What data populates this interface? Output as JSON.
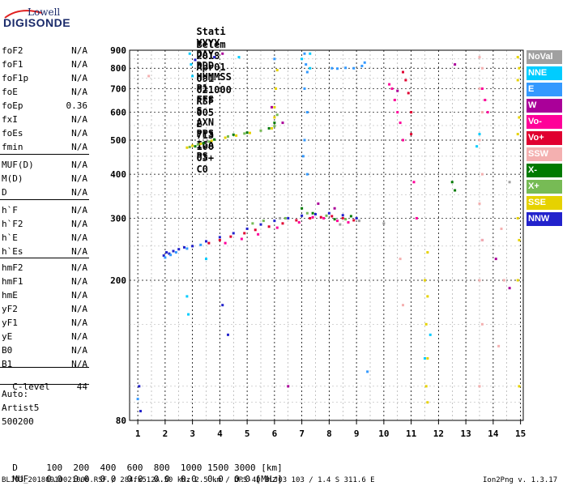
{
  "logo": {
    "line1": "Lowell",
    "line2": "DIGISONDE"
  },
  "header": {
    "row1": [
      "Stati",
      "YYYY",
      "DAY",
      "DDD",
      "HHMMSS",
      "P1",
      "FFS",
      "S",
      "AXN",
      "PPS",
      "IGA",
      "PS"
    ],
    "row2": [
      "Belem",
      "2018",
      "Apr01",
      "091",
      "021000",
      "RSF",
      "005",
      "2",
      "713",
      "100",
      "03+",
      "C0"
    ]
  },
  "params": [
    {
      "name": "foF2",
      "value": "N/A"
    },
    {
      "name": "foF1",
      "value": "N/A"
    },
    {
      "name": "foF1p",
      "value": "N/A"
    },
    {
      "name": "foE",
      "value": "N/A"
    },
    {
      "name": "foEp",
      "value": "0.36"
    },
    {
      "name": "fxI",
      "value": "N/A"
    },
    {
      "name": "foEs",
      "value": "N/A"
    },
    {
      "name": "fmin",
      "value": "N/A"
    },
    {
      "name": "MUF(D)",
      "value": "N/A"
    },
    {
      "name": "M(D)",
      "value": "N/A"
    },
    {
      "name": "D",
      "value": "N/A"
    },
    {
      "name": "h`F",
      "value": "N/A"
    },
    {
      "name": "h`F2",
      "value": "N/A"
    },
    {
      "name": "h`E",
      "value": "N/A"
    },
    {
      "name": "h`Es",
      "value": "N/A"
    },
    {
      "name": "hmF2",
      "value": "N/A"
    },
    {
      "name": "hmF1",
      "value": "N/A"
    },
    {
      "name": "hmE",
      "value": "N/A"
    },
    {
      "name": "yF2",
      "value": "N/A"
    },
    {
      "name": "yF1",
      "value": "N/A"
    },
    {
      "name": "yE",
      "value": "N/A"
    },
    {
      "name": "B0",
      "value": "N/A"
    },
    {
      "name": "B1",
      "value": "N/A"
    }
  ],
  "clevel": {
    "name": "C-level",
    "value": "44"
  },
  "auto": {
    "label": "Auto:",
    "artist": "Artist5",
    "version": "500200"
  },
  "legend": [
    {
      "label": "NoVal",
      "color": "#a0a0a0"
    },
    {
      "label": "NNE",
      "color": "#00ccff"
    },
    {
      "label": "E",
      "color": "#3399ff"
    },
    {
      "label": "W",
      "color": "#aa0099"
    },
    {
      "label": "Vo-",
      "color": "#ff0099"
    },
    {
      "label": "Vo+",
      "color": "#e00030"
    },
    {
      "label": "SSW",
      "color": "#f4b0b0"
    },
    {
      "label": "X-",
      "color": "#007a00"
    },
    {
      "label": "X+",
      "color": "#77bb55"
    },
    {
      "label": "SSE",
      "color": "#e6d200"
    },
    {
      "label": "NNW",
      "color": "#2222cc"
    }
  ],
  "footer": {
    "d_label": "D",
    "d_values": [
      "100",
      "200",
      "400",
      "600",
      "800",
      "1000",
      "1500",
      "3000",
      "[km]"
    ],
    "muf_label": "MUF",
    "muf_values": [
      "0.0",
      "0.0",
      "0.0",
      "0.0",
      "0.0",
      "0.0",
      "0.0",
      "0.0",
      "[MHz]"
    ],
    "file_info": "BLJ03_20180910021000.RSF / 284fx512A 50 kHz 2.5 km / DPS-4D BLJ03 103 / 1.4 S 311.6 E",
    "version": "Ion2Png v. 1.3.17"
  },
  "chart_data": {
    "type": "scatter",
    "title": "",
    "xlabel": "",
    "ylabel": "",
    "xlim": [
      0.7,
      15.1
    ],
    "ylim": [
      80,
      900
    ],
    "y_scale": "log",
    "x_ticks": [
      1,
      2,
      3,
      4,
      5,
      6,
      7,
      8,
      9,
      10,
      11,
      12,
      13,
      14,
      15
    ],
    "y_ticks": [
      80,
      200,
      300,
      400,
      500,
      600,
      700,
      800,
      900
    ],
    "grid": true,
    "legend_placement": "right",
    "series": [
      {
        "color": "#2222cc",
        "points": [
          [
            1.95,
            235
          ],
          [
            2.05,
            240
          ],
          [
            2.15,
            238
          ],
          [
            2.3,
            242
          ],
          [
            2.5,
            245
          ],
          [
            2.7,
            248
          ],
          [
            3.0,
            250
          ],
          [
            3.5,
            258
          ],
          [
            4.0,
            265
          ],
          [
            4.5,
            272
          ],
          [
            5.0,
            280
          ],
          [
            5.5,
            288
          ],
          [
            6.0,
            295
          ],
          [
            6.5,
            300
          ],
          [
            7.0,
            305
          ],
          [
            7.5,
            308
          ],
          [
            8.0,
            310
          ],
          [
            8.5,
            306
          ],
          [
            9.0,
            300
          ],
          [
            3.1,
            845
          ],
          [
            3.8,
            860
          ],
          [
            4.1,
            170
          ],
          [
            4.3,
            140
          ],
          [
            1.05,
            100
          ],
          [
            1.1,
            85
          ]
        ]
      },
      {
        "color": "#3399ff",
        "points": [
          [
            2.0,
            232
          ],
          [
            2.2,
            236
          ],
          [
            2.4,
            240
          ],
          [
            2.8,
            246
          ],
          [
            3.3,
            252
          ],
          [
            7.1,
            880
          ],
          [
            7.15,
            820
          ],
          [
            7.2,
            780
          ],
          [
            7.1,
            700
          ],
          [
            7.2,
            600
          ],
          [
            7.1,
            500
          ],
          [
            7.05,
            450
          ],
          [
            7.2,
            400
          ],
          [
            8.1,
            800
          ],
          [
            8.3,
            798
          ],
          [
            8.6,
            802
          ],
          [
            8.9,
            800
          ],
          [
            9.2,
            812
          ],
          [
            9.3,
            830
          ],
          [
            6.0,
            850
          ],
          [
            1.0,
            92
          ],
          [
            9.4,
            110
          ]
        ]
      },
      {
        "color": "#00ccff",
        "points": [
          [
            2.9,
            880
          ],
          [
            2.95,
            820
          ],
          [
            3.0,
            760
          ],
          [
            2.8,
            180
          ],
          [
            2.85,
            160
          ],
          [
            3.5,
            230
          ],
          [
            4.7,
            860
          ],
          [
            7.0,
            850
          ],
          [
            7.3,
            880
          ],
          [
            7.3,
            800
          ],
          [
            11.7,
            140
          ],
          [
            11.5,
            120
          ],
          [
            13.5,
            520
          ],
          [
            13.4,
            480
          ]
        ]
      },
      {
        "color": "#aa0099",
        "points": [
          [
            4.1,
            880
          ],
          [
            5.9,
            620
          ],
          [
            6.3,
            560
          ],
          [
            6.5,
            100
          ],
          [
            10.5,
            690
          ],
          [
            12.6,
            820
          ],
          [
            13.6,
            260
          ],
          [
            14.1,
            230
          ],
          [
            14.6,
            190
          ],
          [
            7.6,
            330
          ],
          [
            8.2,
            320
          ]
        ]
      },
      {
        "color": "#ff0099",
        "points": [
          [
            4.2,
            255
          ],
          [
            4.8,
            262
          ],
          [
            5.4,
            270
          ],
          [
            6.1,
            282
          ],
          [
            6.9,
            292
          ],
          [
            7.4,
            302
          ],
          [
            7.8,
            300
          ],
          [
            8.3,
            295
          ],
          [
            8.7,
            292
          ],
          [
            10.2,
            720
          ],
          [
            10.3,
            700
          ],
          [
            10.4,
            650
          ],
          [
            10.5,
            600
          ],
          [
            10.6,
            560
          ],
          [
            10.7,
            500
          ],
          [
            11.1,
            380
          ],
          [
            11.2,
            300
          ],
          [
            13.6,
            700
          ],
          [
            13.7,
            650
          ],
          [
            13.8,
            600
          ]
        ]
      },
      {
        "color": "#e00030",
        "points": [
          [
            3.6,
            255
          ],
          [
            4.0,
            260
          ],
          [
            4.4,
            266
          ],
          [
            4.9,
            272
          ],
          [
            5.3,
            278
          ],
          [
            5.8,
            284
          ],
          [
            6.3,
            290
          ],
          [
            6.8,
            296
          ],
          [
            7.3,
            300
          ],
          [
            7.7,
            302
          ],
          [
            8.1,
            304
          ],
          [
            8.5,
            300
          ],
          [
            8.9,
            296
          ],
          [
            10.7,
            780
          ],
          [
            10.8,
            740
          ],
          [
            10.9,
            680
          ],
          [
            11.0,
            600
          ],
          [
            11.0,
            520
          ]
        ]
      },
      {
        "color": "#f4b0b0",
        "points": [
          [
            1.4,
            760
          ],
          [
            13.5,
            860
          ],
          [
            13.6,
            800
          ],
          [
            13.5,
            700
          ],
          [
            13.6,
            600
          ],
          [
            13.5,
            500
          ],
          [
            13.6,
            400
          ],
          [
            13.5,
            330
          ],
          [
            13.6,
            260
          ],
          [
            13.5,
            200
          ],
          [
            13.6,
            150
          ],
          [
            13.5,
            100
          ],
          [
            14.3,
            280
          ],
          [
            14.4,
            200
          ],
          [
            14.2,
            130
          ],
          [
            10.6,
            230
          ],
          [
            10.7,
            170
          ]
        ]
      },
      {
        "color": "#007a00",
        "points": [
          [
            3.1,
            480
          ],
          [
            3.4,
            490
          ],
          [
            3.8,
            502
          ],
          [
            4.5,
            518
          ],
          [
            5.0,
            525
          ],
          [
            5.8,
            540
          ],
          [
            6.0,
            560
          ],
          [
            7.0,
            320
          ],
          [
            7.4,
            310
          ],
          [
            8.2,
            298
          ],
          [
            8.8,
            304
          ],
          [
            12.5,
            380
          ],
          [
            12.6,
            360
          ]
        ]
      },
      {
        "color": "#77bb55",
        "points": [
          [
            2.9,
            478
          ],
          [
            3.2,
            486
          ],
          [
            3.6,
            495
          ],
          [
            4.3,
            512
          ],
          [
            4.9,
            522
          ],
          [
            5.5,
            532
          ],
          [
            6.0,
            548
          ],
          [
            6.1,
            590
          ],
          [
            5.2,
            290
          ],
          [
            5.6,
            295
          ],
          [
            6.4,
            300
          ],
          [
            7.2,
            310
          ],
          [
            7.9,
            305
          ],
          [
            8.6,
            298
          ]
        ]
      },
      {
        "color": "#e6d200",
        "points": [
          [
            2.8,
            476
          ],
          [
            3.0,
            482
          ],
          [
            3.3,
            488
          ],
          [
            3.7,
            498
          ],
          [
            4.2,
            508
          ],
          [
            4.6,
            515
          ],
          [
            5.1,
            524
          ],
          [
            5.9,
            540
          ],
          [
            6.0,
            580
          ],
          [
            6.0,
            620
          ],
          [
            6.05,
            700
          ],
          [
            6.1,
            790
          ],
          [
            11.6,
            240
          ],
          [
            11.5,
            200
          ],
          [
            11.6,
            180
          ],
          [
            11.55,
            150
          ],
          [
            11.6,
            120
          ],
          [
            11.55,
            100
          ],
          [
            11.6,
            90
          ],
          [
            14.9,
            860
          ],
          [
            14.95,
            800
          ],
          [
            14.9,
            740
          ],
          [
            14.95,
            580
          ],
          [
            14.9,
            520
          ],
          [
            14.9,
            300
          ],
          [
            14.95,
            260
          ],
          [
            14.9,
            200
          ],
          [
            14.95,
            100
          ]
        ]
      },
      {
        "color": "#a0a0a0",
        "points": [
          [
            6.2,
            300
          ],
          [
            8.4,
            288
          ],
          [
            9.1,
            295
          ],
          [
            10.0,
            290
          ],
          [
            14.6,
            380
          ]
        ]
      }
    ]
  }
}
